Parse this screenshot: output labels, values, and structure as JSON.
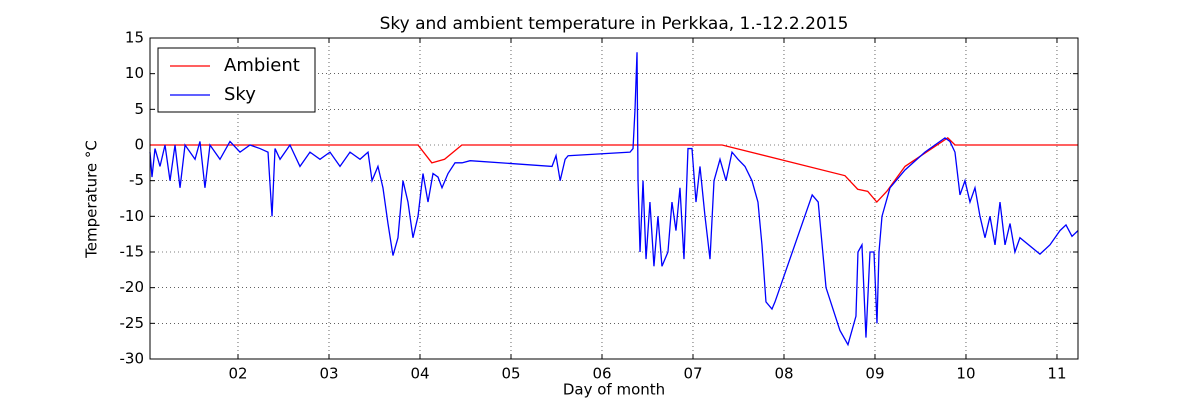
{
  "chart_data": {
    "type": "line",
    "title": "Sky and ambient temperature in Perkkaa, 1.-12.2.2015",
    "x_label": "Day of month",
    "y_label": "Temperature °C",
    "xlim": [
      1.033,
      11.231
    ],
    "ylim": [
      -30,
      15
    ],
    "xticks": [
      {
        "value": 2,
        "label": "02"
      },
      {
        "value": 3,
        "label": "03"
      },
      {
        "value": 4,
        "label": "04"
      },
      {
        "value": 5,
        "label": "05"
      },
      {
        "value": 6,
        "label": "06"
      },
      {
        "value": 7,
        "label": "07"
      },
      {
        "value": 8,
        "label": "08"
      },
      {
        "value": 9,
        "label": "09"
      },
      {
        "value": 10,
        "label": "10"
      },
      {
        "value": 11,
        "label": "11"
      }
    ],
    "yticks": [
      -30,
      -25,
      -20,
      -15,
      -10,
      -5,
      0,
      5,
      10,
      15
    ],
    "grid": true,
    "legend": "upper left",
    "series": [
      {
        "name": "Ambient",
        "color": "#ff0000",
        "x": [
          1.033,
          3.978,
          4.13,
          4.27,
          4.46,
          7.32,
          8.67,
          8.81,
          8.92,
          9.02,
          9.13,
          9.33,
          9.8,
          9.88,
          11.231
        ],
        "values": [
          0,
          0,
          -2.5,
          -2,
          0,
          0,
          -4.3,
          -6.2,
          -6.5,
          -8,
          -6.5,
          -3,
          1,
          0,
          0
        ]
      },
      {
        "name": "Sky",
        "color": "#0000ff",
        "x": [
          1.033,
          1.055,
          1.088,
          1.143,
          1.198,
          1.253,
          1.308,
          1.363,
          1.418,
          1.528,
          1.582,
          1.637,
          1.692,
          1.802,
          1.912,
          2.022,
          2.132,
          2.242,
          2.33,
          2.374,
          2.407,
          2.462,
          2.571,
          2.681,
          2.791,
          2.901,
          3.011,
          3.121,
          3.231,
          3.341,
          3.429,
          3.473,
          3.538,
          3.593,
          3.648,
          3.703,
          3.758,
          3.813,
          3.868,
          3.923,
          3.978,
          4.033,
          4.088,
          4.143,
          4.198,
          4.242,
          4.308,
          4.385,
          4.462,
          4.551,
          5.451,
          5.495,
          5.54,
          5.595,
          5.628,
          6.308,
          6.341,
          6.363,
          6.385,
          6.396,
          6.418,
          6.451,
          6.484,
          6.527,
          6.571,
          6.615,
          6.659,
          6.725,
          6.769,
          6.813,
          6.857,
          6.901,
          6.945,
          6.989,
          7.033,
          7.077,
          7.132,
          7.187,
          7.231,
          7.297,
          7.363,
          7.429,
          7.495,
          7.571,
          7.648,
          7.714,
          7.758,
          7.802,
          7.868,
          7.901,
          8.31,
          8.376,
          8.462,
          8.615,
          8.703,
          8.791,
          8.813,
          8.857,
          8.901,
          8.945,
          8.989,
          9.022,
          9.044,
          9.077,
          9.165,
          9.33,
          9.549,
          9.769,
          9.824,
          9.879,
          9.934,
          9.989,
          10.044,
          10.099,
          10.154,
          10.209,
          10.264,
          10.319,
          10.374,
          10.429,
          10.484,
          10.538,
          10.593,
          10.813,
          10.923,
          11.033,
          11.099,
          11.165,
          11.231
        ],
        "values": [
          -1,
          -4.5,
          -0.5,
          -3,
          0,
          -5,
          0,
          -6,
          0,
          -2,
          0.5,
          -6,
          0,
          -2,
          0.5,
          -1,
          0,
          -0.5,
          -1,
          -10,
          -0.5,
          -2,
          0,
          -3,
          -1,
          -2,
          -1,
          -3,
          -1,
          -2,
          -1,
          -5,
          -3,
          -6,
          -11,
          -15.5,
          -13,
          -5,
          -8,
          -13,
          -10,
          -4,
          -8,
          -4,
          -4.5,
          -6,
          -4,
          -2.5,
          -2.5,
          -2.2,
          -3,
          -1.5,
          -5,
          -2,
          -1.5,
          -1,
          -0.5,
          5,
          13,
          -5,
          -15,
          -5,
          -16,
          -8,
          -17,
          -10,
          -17,
          -15,
          -8,
          -12,
          -6,
          -16,
          -0.5,
          -0.5,
          -8,
          -3,
          -10,
          -16,
          -5,
          -2,
          -5,
          -1,
          -2,
          -3,
          -5,
          -8,
          -14,
          -22,
          -23,
          -22,
          -7,
          -8,
          -20,
          -26,
          -28,
          -24,
          -15,
          -14,
          -27,
          -15,
          -15,
          -25,
          -15,
          -10,
          -6,
          -3.5,
          -1,
          1,
          0.5,
          -1,
          -7,
          -5,
          -8,
          -6,
          -10,
          -13,
          -10,
          -14,
          -8,
          -14,
          -11,
          -15,
          -13,
          -15.3,
          -14,
          -12,
          -11.2,
          -12.8,
          -12
        ]
      }
    ]
  }
}
